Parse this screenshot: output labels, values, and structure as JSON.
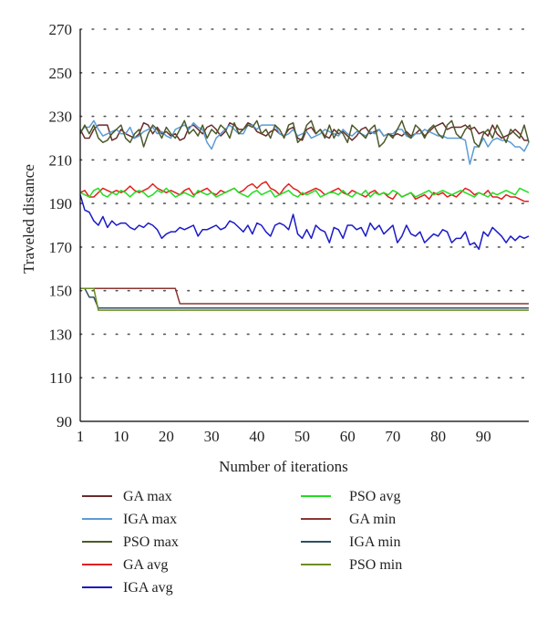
{
  "chart_data": {
    "type": "line",
    "xlabel": "Number of iterations",
    "ylabel": "Traveled distance",
    "xlim": [
      1,
      100
    ],
    "ylim": [
      90,
      270
    ],
    "x_ticks": [
      1,
      10,
      20,
      30,
      40,
      50,
      60,
      70,
      80,
      90
    ],
    "y_ticks": [
      90,
      110,
      130,
      150,
      170,
      190,
      210,
      230,
      250,
      270
    ],
    "grid": "horizontal dotted",
    "legend": "bottom, two columns",
    "x": [
      1,
      2,
      3,
      4,
      5,
      6,
      7,
      8,
      9,
      10,
      11,
      12,
      13,
      14,
      15,
      16,
      17,
      18,
      19,
      20,
      21,
      22,
      23,
      24,
      25,
      26,
      27,
      28,
      29,
      30,
      31,
      32,
      33,
      34,
      35,
      36,
      37,
      38,
      39,
      40,
      41,
      42,
      43,
      44,
      45,
      46,
      47,
      48,
      49,
      50,
      51,
      52,
      53,
      54,
      55,
      56,
      57,
      58,
      59,
      60,
      61,
      62,
      63,
      64,
      65,
      66,
      67,
      68,
      69,
      70,
      71,
      72,
      73,
      74,
      75,
      76,
      77,
      78,
      79,
      80,
      81,
      82,
      83,
      84,
      85,
      86,
      87,
      88,
      89,
      90,
      91,
      92,
      93,
      94,
      95,
      96,
      97,
      98,
      99,
      100
    ],
    "series": [
      {
        "name": "GA max",
        "color": "#6b2b2b",
        "values": [
          224,
          220,
          220,
          224,
          226,
          226,
          226,
          219,
          220,
          224,
          222,
          221,
          220,
          222,
          227,
          226,
          222,
          225,
          222,
          223,
          221,
          222,
          219,
          220,
          225,
          226,
          224,
          222,
          225,
          226,
          224,
          221,
          223,
          227,
          226,
          224,
          224,
          227,
          226,
          223,
          222,
          221,
          223,
          224,
          222,
          221,
          224,
          225,
          220,
          219,
          224,
          225,
          222,
          224,
          221,
          220,
          224,
          222,
          223,
          221,
          219,
          221,
          224,
          225,
          222,
          223,
          224,
          221,
          222,
          221,
          222,
          221,
          223,
          221,
          222,
          224,
          221,
          223,
          225,
          226,
          227,
          224,
          225,
          225,
          225,
          226,
          224,
          225,
          222,
          223,
          221,
          226,
          222,
          220,
          221,
          222,
          224,
          222,
          219,
          219
        ]
      },
      {
        "name": "IGA max",
        "color": "#5b9bd5",
        "values": [
          223,
          225,
          225,
          228,
          224,
          221,
          222,
          223,
          224,
          222,
          222,
          225,
          220,
          221,
          223,
          224,
          225,
          222,
          223,
          221,
          220,
          224,
          225,
          226,
          224,
          227,
          225,
          224,
          218,
          215,
          220,
          222,
          224,
          226,
          224,
          222,
          222,
          226,
          226,
          224,
          226,
          226,
          226,
          226,
          222,
          221,
          222,
          224,
          221,
          222,
          223,
          220,
          221,
          222,
          224,
          223,
          222,
          221,
          224,
          222,
          221,
          223,
          222,
          221,
          223,
          222,
          224,
          221,
          222,
          222,
          224,
          224,
          221,
          220,
          222,
          222,
          224,
          223,
          222,
          221,
          221,
          220,
          220,
          220,
          220,
          219,
          208,
          216,
          216,
          220,
          216,
          219,
          220,
          219,
          219,
          218,
          216,
          216,
          214,
          218
        ]
      },
      {
        "name": "PSO max",
        "color": "#4b5a2a",
        "values": [
          222,
          226,
          222,
          226,
          220,
          218,
          219,
          222,
          224,
          226,
          220,
          218,
          222,
          224,
          216,
          222,
          226,
          224,
          220,
          225,
          222,
          220,
          224,
          228,
          222,
          224,
          221,
          226,
          220,
          224,
          222,
          226,
          224,
          220,
          227,
          222,
          224,
          226,
          225,
          228,
          222,
          224,
          220,
          226,
          224,
          220,
          226,
          227,
          218,
          220,
          226,
          228,
          222,
          224,
          220,
          226,
          220,
          224,
          222,
          218,
          226,
          224,
          222,
          220,
          224,
          226,
          216,
          218,
          222,
          220,
          224,
          228,
          222,
          220,
          226,
          224,
          220,
          224,
          226,
          222,
          220,
          226,
          228,
          222,
          220,
          224,
          226,
          218,
          216,
          222,
          224,
          220,
          226,
          222,
          218,
          224,
          222,
          220,
          226,
          218
        ]
      },
      {
        "name": "GA avg",
        "color": "#e02020",
        "values": [
          195,
          196,
          193,
          193,
          195,
          197,
          196,
          195,
          196,
          195,
          196,
          198,
          196,
          195,
          196,
          197,
          199,
          197,
          196,
          195,
          196,
          195,
          194,
          196,
          197,
          194,
          195,
          196,
          197,
          195,
          194,
          196,
          195,
          196,
          197,
          195,
          196,
          198,
          199,
          197,
          199,
          200,
          197,
          196,
          194,
          197,
          199,
          197,
          196,
          194,
          195,
          196,
          197,
          196,
          194,
          195,
          196,
          197,
          195,
          194,
          196,
          195,
          194,
          193,
          195,
          196,
          194,
          195,
          193,
          192,
          195,
          193,
          194,
          195,
          192,
          193,
          194,
          192,
          195,
          194,
          195,
          193,
          194,
          193,
          195,
          197,
          196,
          194,
          195,
          194,
          196,
          193,
          193,
          192,
          194,
          193,
          193,
          192,
          191,
          191
        ]
      },
      {
        "name": "IGA avg",
        "color": "#1a1ac8",
        "values": [
          194,
          187,
          186,
          182,
          180,
          184,
          179,
          182,
          180,
          181,
          181,
          179,
          178,
          180,
          179,
          181,
          180,
          178,
          174,
          176,
          177,
          177,
          179,
          178,
          179,
          180,
          175,
          178,
          178,
          179,
          180,
          178,
          179,
          182,
          181,
          179,
          177,
          180,
          176,
          181,
          180,
          177,
          175,
          180,
          181,
          180,
          178,
          185,
          176,
          174,
          178,
          174,
          180,
          178,
          177,
          172,
          179,
          178,
          174,
          180,
          180,
          178,
          179,
          175,
          181,
          178,
          180,
          176,
          178,
          180,
          172,
          175,
          180,
          176,
          175,
          177,
          172,
          174,
          176,
          175,
          178,
          177,
          172,
          174,
          174,
          177,
          171,
          172,
          169,
          177,
          175,
          179,
          177,
          175,
          172,
          175,
          173,
          175,
          174,
          175
        ]
      },
      {
        "name": "PSO avg",
        "color": "#22dd22",
        "values": [
          195,
          194,
          193,
          196,
          197,
          194,
          193,
          195,
          194,
          196,
          195,
          193,
          195,
          196,
          195,
          193,
          194,
          196,
          195,
          197,
          195,
          193,
          194,
          195,
          194,
          193,
          196,
          195,
          194,
          195,
          193,
          194,
          195,
          196,
          197,
          195,
          194,
          193,
          195,
          196,
          194,
          195,
          196,
          193,
          194,
          195,
          196,
          194,
          193,
          195,
          194,
          195,
          196,
          193,
          194,
          195,
          195,
          194,
          196,
          194,
          193,
          195,
          194,
          196,
          193,
          195,
          194,
          195,
          194,
          196,
          195,
          193,
          194,
          195,
          193,
          194,
          195,
          196,
          194,
          195,
          196,
          195,
          194,
          195,
          196,
          195,
          194,
          193,
          195,
          194,
          193,
          195,
          194,
          195,
          196,
          195,
          194,
          197,
          196,
          195
        ]
      },
      {
        "name": "GA min",
        "color": "#8b3535",
        "values": [
          151,
          151,
          151,
          151,
          151,
          151,
          151,
          151,
          151,
          151,
          151,
          151,
          151,
          151,
          151,
          151,
          151,
          151,
          151,
          151,
          151,
          151,
          144,
          144,
          144,
          144,
          144,
          144,
          144,
          144,
          144,
          144,
          144,
          144,
          144,
          144,
          144,
          144,
          144,
          144,
          144,
          144,
          144,
          144,
          144,
          144,
          144,
          144,
          144,
          144,
          144,
          144,
          144,
          144,
          144,
          144,
          144,
          144,
          144,
          144,
          144,
          144,
          144,
          144,
          144,
          144,
          144,
          144,
          144,
          144,
          144,
          144,
          144,
          144,
          144,
          144,
          144,
          144,
          144,
          144,
          144,
          144,
          144,
          144,
          144,
          144,
          144,
          144,
          144,
          144,
          144,
          144,
          144,
          144,
          144,
          144,
          144,
          144,
          144,
          144
        ]
      },
      {
        "name": "IGA min",
        "color": "#2f4f5f",
        "values": [
          151,
          151,
          147,
          147,
          142,
          142,
          142,
          142,
          142,
          142,
          142,
          142,
          142,
          142,
          142,
          142,
          142,
          142,
          142,
          142,
          142,
          142,
          142,
          142,
          142,
          142,
          142,
          142,
          142,
          142,
          142,
          142,
          142,
          142,
          142,
          142,
          142,
          142,
          142,
          142,
          142,
          142,
          142,
          142,
          142,
          142,
          142,
          142,
          142,
          142,
          142,
          142,
          142,
          142,
          142,
          142,
          142,
          142,
          142,
          142,
          142,
          142,
          142,
          142,
          142,
          142,
          142,
          142,
          142,
          142,
          142,
          142,
          142,
          142,
          142,
          142,
          142,
          142,
          142,
          142,
          142,
          142,
          142,
          142,
          142,
          142,
          142,
          142,
          142,
          142,
          142,
          142,
          142,
          142,
          142,
          142,
          142,
          142,
          142,
          142
        ]
      },
      {
        "name": "PSO min",
        "color": "#6b8e23",
        "values": [
          151,
          151,
          151,
          151,
          141,
          141,
          141,
          141,
          141,
          141,
          141,
          141,
          141,
          141,
          141,
          141,
          141,
          141,
          141,
          141,
          141,
          141,
          141,
          141,
          141,
          141,
          141,
          141,
          141,
          141,
          141,
          141,
          141,
          141,
          141,
          141,
          141,
          141,
          141,
          141,
          141,
          141,
          141,
          141,
          141,
          141,
          141,
          141,
          141,
          141,
          141,
          141,
          141,
          141,
          141,
          141,
          141,
          141,
          141,
          141,
          141,
          141,
          141,
          141,
          141,
          141,
          141,
          141,
          141,
          141,
          141,
          141,
          141,
          141,
          141,
          141,
          141,
          141,
          141,
          141,
          141,
          141,
          141,
          141,
          141,
          141,
          141,
          141,
          141,
          141,
          141,
          141,
          141,
          141,
          141,
          141,
          141,
          141,
          141,
          141
        ]
      }
    ]
  }
}
